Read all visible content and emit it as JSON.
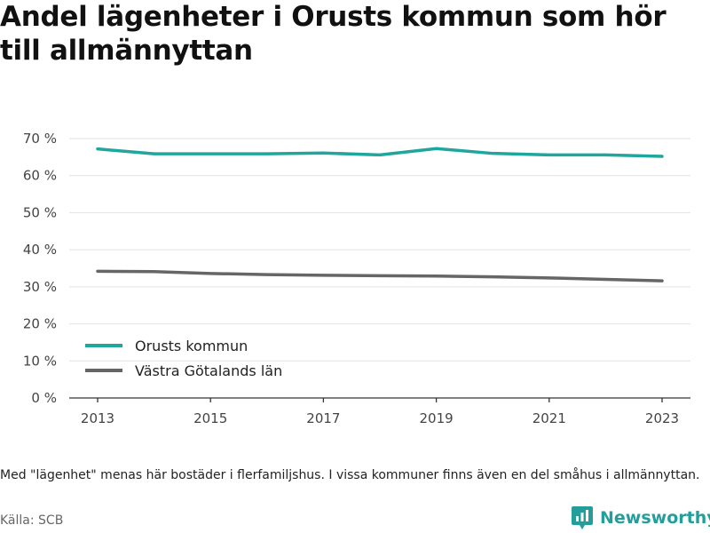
{
  "title": "Andel lägenheter i Orusts kommun som hör till allmännyttan",
  "chart_data": {
    "type": "line",
    "x": [
      2013,
      2014,
      2015,
      2016,
      2017,
      2018,
      2019,
      2020,
      2021,
      2022,
      2023
    ],
    "x_ticks": [
      "2013",
      "2015",
      "2017",
      "2019",
      "2021",
      "2023"
    ],
    "y_ticks": [
      "0 %",
      "10 %",
      "20 %",
      "30 %",
      "40 %",
      "50 %",
      "60 %",
      "70 %"
    ],
    "ylim": [
      0,
      70
    ],
    "grid": true,
    "legend_position": "bottom-left",
    "series": [
      {
        "name": "Orusts kommun",
        "color": "#1fa69d",
        "values": [
          67.2,
          65.9,
          65.9,
          65.9,
          66.1,
          65.6,
          67.3,
          66.0,
          65.6,
          65.6,
          65.2
        ]
      },
      {
        "name": "Västra Götalands län",
        "color": "#666666",
        "values": [
          34.2,
          34.1,
          33.6,
          33.3,
          33.1,
          33.0,
          32.9,
          32.7,
          32.4,
          32.0,
          31.6
        ]
      }
    ]
  },
  "footnote": "Med \"lägenhet\" menas här bostäder i flerfamiljshus. I vissa kommuner finns även en del småhus i allmännyttan.",
  "source": "Källa: SCB",
  "brand": {
    "name": "Newsworthy",
    "color": "#239e9b",
    "icon": "newsworthy-logo-icon"
  }
}
